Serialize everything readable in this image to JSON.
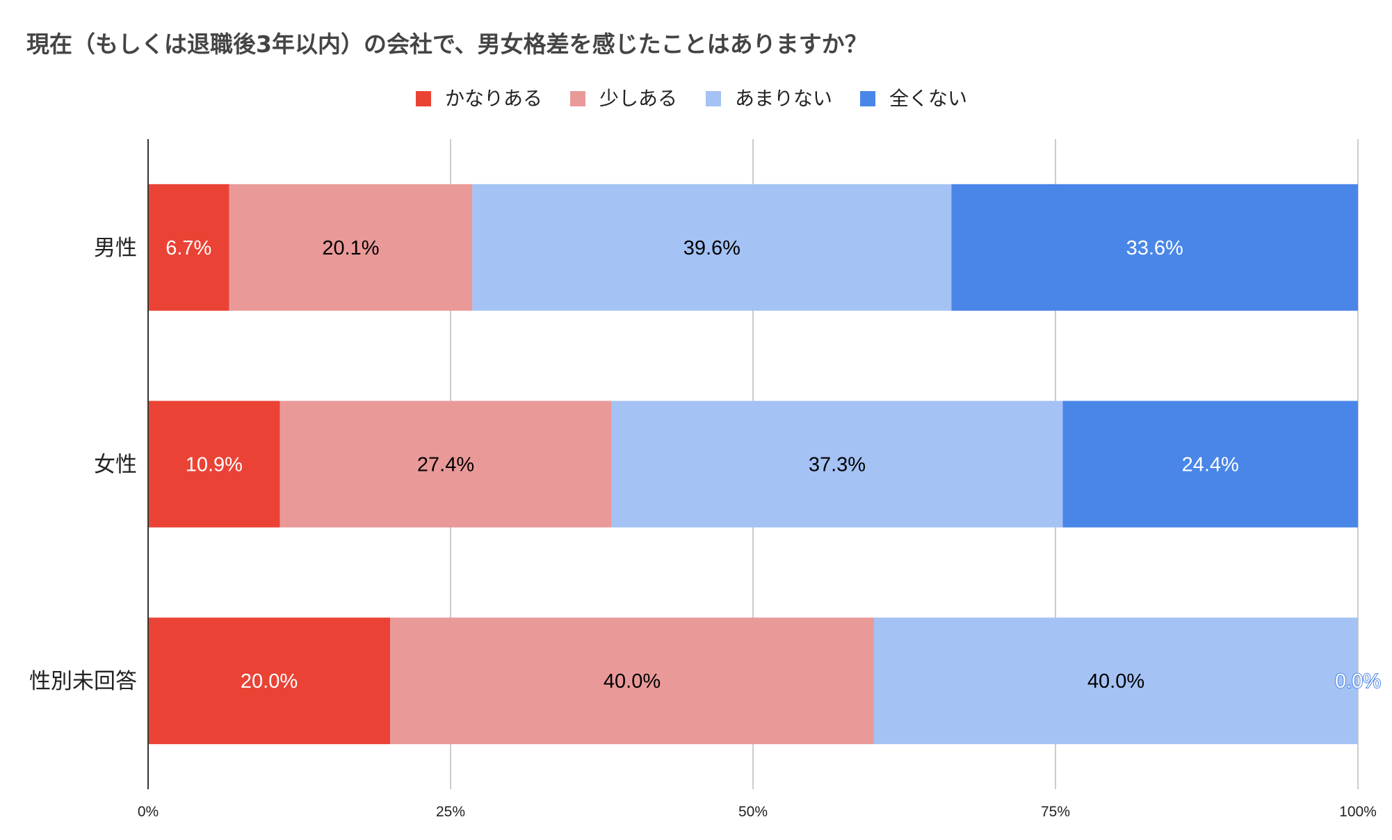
{
  "chart_data": {
    "type": "bar",
    "orientation": "horizontal",
    "stacked": "percent",
    "title": "現在（もしくは退職後3年以内）の会社で、男女格差を感じたことはありますか？",
    "categories": [
      "男性",
      "女性",
      "性別未回答"
    ],
    "series": [
      {
        "name": "かなりある",
        "color": "#ea4335",
        "values": [
          6.7,
          10.9,
          20.0
        ],
        "labels": [
          "6.7%",
          "10.9%",
          "20.0%"
        ],
        "label_color": "#ffffff"
      },
      {
        "name": "少しある",
        "color": "#ea9999",
        "values": [
          20.1,
          27.4,
          40.0
        ],
        "labels": [
          "20.1%",
          "27.4%",
          "40.0%"
        ],
        "label_color": "#000000"
      },
      {
        "name": "あまりない",
        "color": "#a4c2f4",
        "values": [
          39.6,
          37.3,
          40.0
        ],
        "labels": [
          "39.6%",
          "37.3%",
          "40.0%"
        ],
        "label_color": "#000000"
      },
      {
        "name": "全くない",
        "color": "#4a86e8",
        "values": [
          33.6,
          24.4,
          0.0
        ],
        "labels": [
          "33.6%",
          "24.4%",
          "0.0%"
        ],
        "label_color": "#ffffff"
      }
    ],
    "xaxis": {
      "ticks": [
        0,
        25,
        50,
        75,
        100
      ],
      "tick_labels": [
        "0%",
        "25%",
        "50%",
        "75%",
        "100%"
      ],
      "range": [
        0,
        100
      ]
    },
    "grid": true,
    "legend_position": "top-center"
  }
}
